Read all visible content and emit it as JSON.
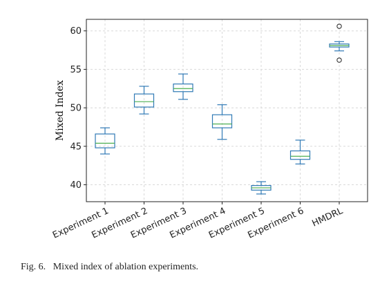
{
  "chart_data": {
    "type": "box",
    "ylabel": "Mixed Index",
    "ylim": [
      37.8,
      61.5
    ],
    "yticks": [
      40,
      45,
      50,
      55,
      60
    ],
    "grid": true,
    "categories": [
      "Experiment 1",
      "Experiment 2",
      "Experiment 3",
      "Experiment 4",
      "Experiment 5",
      "Experiment 6",
      "HMDRL"
    ],
    "boxes": [
      {
        "whislo": 44.0,
        "q1": 44.8,
        "med": 45.4,
        "q3": 46.6,
        "whishi": 47.4,
        "fliers": []
      },
      {
        "whislo": 49.2,
        "q1": 50.1,
        "med": 50.8,
        "q3": 51.8,
        "whishi": 52.8,
        "fliers": []
      },
      {
        "whislo": 51.1,
        "q1": 52.1,
        "med": 52.5,
        "q3": 53.1,
        "whishi": 54.4,
        "fliers": []
      },
      {
        "whislo": 45.9,
        "q1": 47.4,
        "med": 47.9,
        "q3": 49.1,
        "whishi": 50.4,
        "fliers": []
      },
      {
        "whislo": 38.8,
        "q1": 39.3,
        "med": 39.6,
        "q3": 39.9,
        "whishi": 40.4,
        "fliers": []
      },
      {
        "whislo": 42.7,
        "q1": 43.3,
        "med": 43.7,
        "q3": 44.4,
        "whishi": 45.8,
        "fliers": []
      },
      {
        "whislo": 57.4,
        "q1": 57.9,
        "med": 58.1,
        "q3": 58.3,
        "whishi": 58.6,
        "fliers": [
          60.6,
          56.2
        ]
      }
    ],
    "colors": {
      "box": "#2f79b5",
      "median": "#4caf50",
      "flier": "#222222",
      "grid": "#d8d8d8",
      "axis": "#222222"
    }
  },
  "caption": {
    "label": "Fig. 6.",
    "text": "Mixed index of ablation experiments."
  }
}
